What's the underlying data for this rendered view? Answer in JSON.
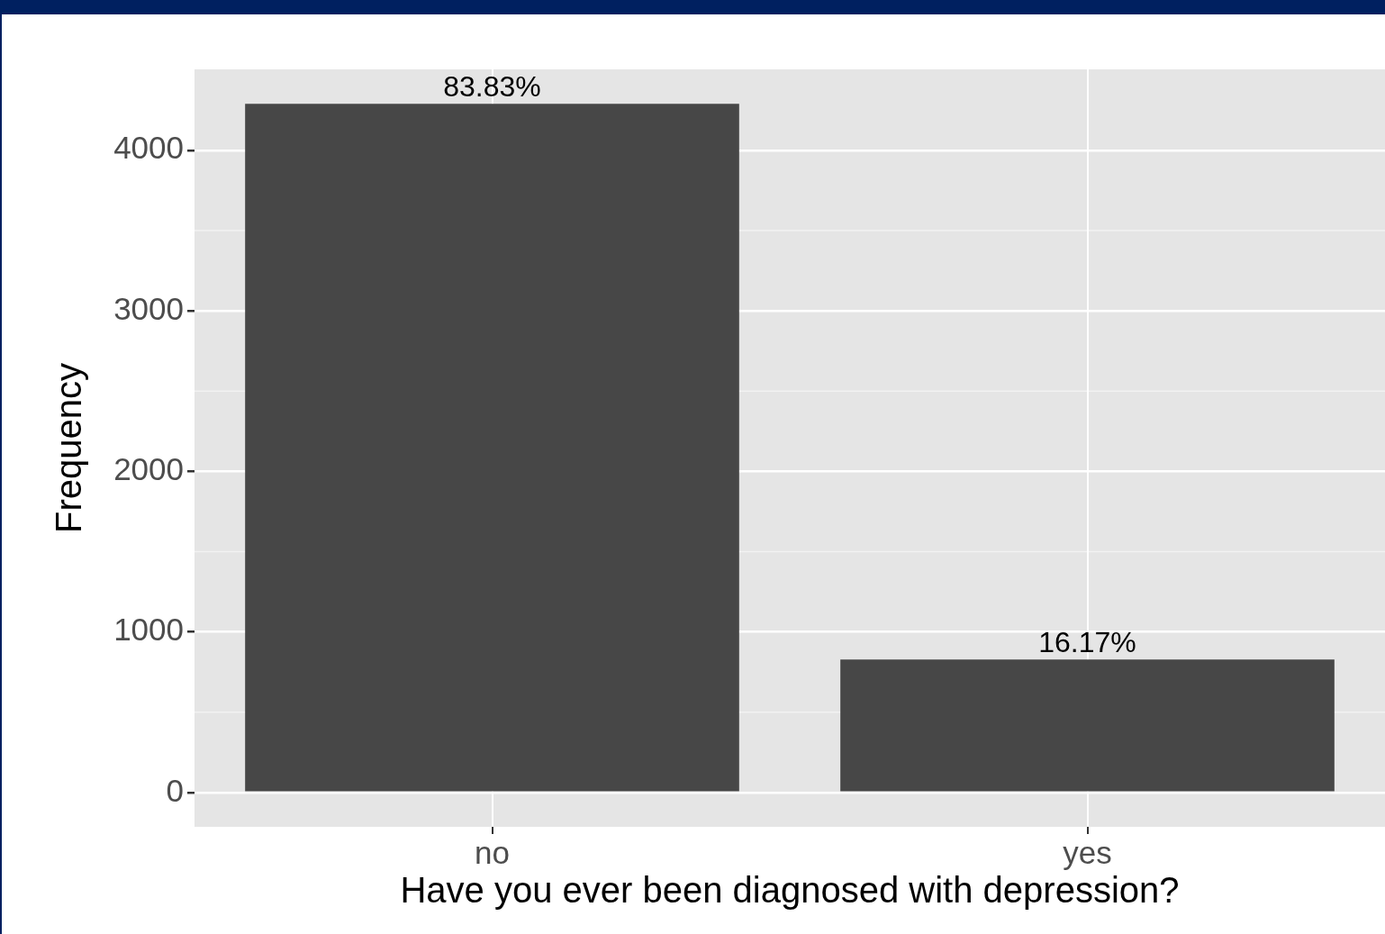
{
  "chart_data": {
    "type": "bar",
    "xlabel": "Have you ever been diagnosed with depression?",
    "ylabel": "Frequency",
    "categories": [
      "no",
      "yes"
    ],
    "values": [
      4290,
      828
    ],
    "color": "#474747",
    "annotations": [
      {
        "text": "83.83%",
        "x": "no",
        "y": 4290
      },
      {
        "text": "16.17%",
        "x": "yes",
        "y": 828
      }
    ],
    "ylim": [
      -214,
      4504
    ],
    "yticks": [
      0,
      1000,
      2000,
      3000,
      4000
    ],
    "grid": true,
    "legend": false
  }
}
